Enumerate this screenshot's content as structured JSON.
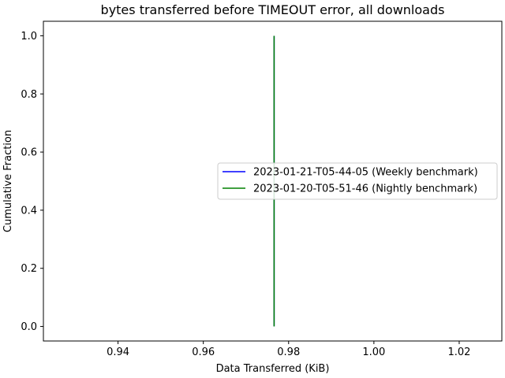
{
  "chart_data": {
    "type": "line",
    "title": "bytes transferred before TIMEOUT error, all downloads",
    "xlabel": "Data Transferred (KiB)",
    "ylabel": "Cumulative Fraction",
    "xlim": [
      0.9225,
      1.03
    ],
    "ylim": [
      -0.05,
      1.05
    ],
    "xticks": [
      0.94,
      0.96,
      0.98,
      1.0,
      1.02
    ],
    "xtick_labels": [
      "0.94",
      "0.96",
      "0.98",
      "1.00",
      "1.02"
    ],
    "yticks": [
      0.0,
      0.2,
      0.4,
      0.6,
      0.8,
      1.0
    ],
    "ytick_labels": [
      "0.0",
      "0.2",
      "0.4",
      "0.6",
      "0.8",
      "1.0"
    ],
    "grid": false,
    "legend_position": "center-right",
    "series": [
      {
        "name": "2023-01-21-T05-44-05 (Weekly benchmark)",
        "color": "#0000ff",
        "x": [
          0.9766,
          0.9766
        ],
        "y": [
          0.0,
          1.0
        ]
      },
      {
        "name": "2023-01-20-T05-51-46 (Nightly benchmark)",
        "color": "#008000",
        "x": [
          0.9766,
          0.9766
        ],
        "y": [
          0.0,
          1.0
        ]
      }
    ]
  }
}
